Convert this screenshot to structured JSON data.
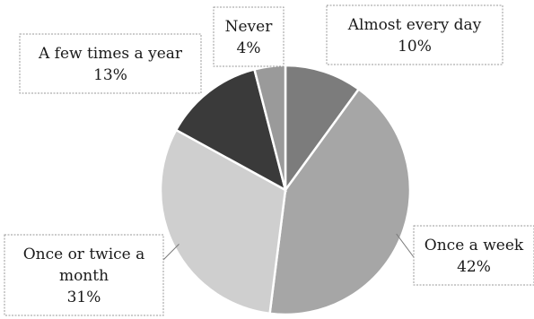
{
  "chart_data": {
    "type": "pie",
    "title": "",
    "categories": [
      "Almost every day",
      "Once a week",
      "Once or twice a month",
      "A few times a year",
      "Never"
    ],
    "values": [
      10,
      42,
      31,
      13,
      4
    ],
    "value_labels": [
      "10%",
      "42%",
      "31%",
      "13%",
      "4%"
    ],
    "label_lines": [
      [
        "Almost every day",
        "10%"
      ],
      [
        "Once a week",
        "42%"
      ],
      [
        "Once or twice a month",
        "31%"
      ],
      [
        "A few times a year",
        "13%"
      ],
      [
        "Never",
        "4%"
      ]
    ],
    "colors": [
      "#7c7c7c",
      "#a6a6a6",
      "#cfcfcf",
      "#3a3a3a",
      "#9a9a9a"
    ],
    "start_angle_deg": 0,
    "direction": "clockwise",
    "legend": "none",
    "labels": "callout boxes"
  }
}
